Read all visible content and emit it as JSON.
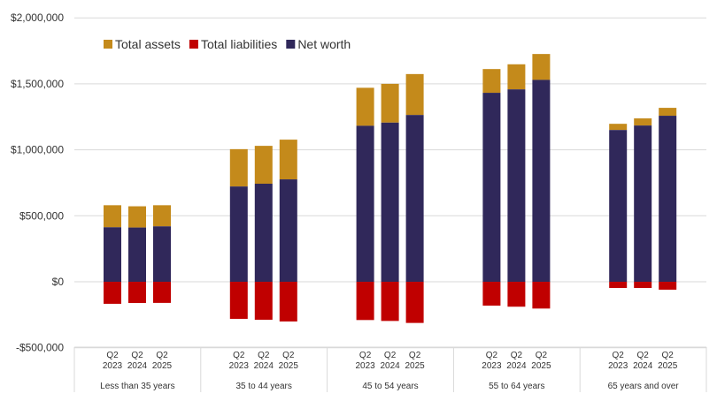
{
  "chart_data": {
    "type": "bar",
    "stacked": true,
    "title": "",
    "xlabel": "",
    "ylabel": "",
    "ylim": [
      -500000,
      2000000
    ],
    "yticks": [
      2000000,
      1500000,
      1000000,
      500000,
      0,
      -500000
    ],
    "ytick_labels": [
      "$2,000,000",
      "$1,500,000",
      "$1,000,000",
      "$500,000",
      "$0",
      "-$500,000"
    ],
    "grid": true,
    "legend_position": "top-left",
    "groups": [
      "Less than 35 years",
      "35 to 44 years",
      "45 to 54 years",
      "55 to 64 years",
      "65 years and over"
    ],
    "sub_categories": [
      [
        "Q2",
        "2023"
      ],
      [
        "Q2",
        "2024"
      ],
      [
        "Q2",
        "2025"
      ]
    ],
    "series": [
      {
        "name": "Total assets",
        "color": "#c48a1b",
        "values": [
          [
            580000,
            572000,
            580000
          ],
          [
            1005000,
            1030000,
            1077000
          ],
          [
            1470000,
            1500000,
            1574000
          ],
          [
            1612000,
            1648000,
            1726000
          ],
          [
            1197000,
            1238000,
            1318000
          ]
        ]
      },
      {
        "name": "Total liabilities",
        "color": "#c00000",
        "values": [
          [
            -167000,
            -161000,
            -160000
          ],
          [
            -281000,
            -288000,
            -301000
          ],
          [
            -290000,
            -297000,
            -312000
          ],
          [
            -181000,
            -189000,
            -203000
          ],
          [
            -47000,
            -47000,
            -60000
          ]
        ]
      },
      {
        "name": "Net worth",
        "color": "#30285a",
        "values": [
          [
            413000,
            411000,
            420000
          ],
          [
            722000,
            743000,
            776000
          ],
          [
            1182000,
            1206000,
            1264000
          ],
          [
            1432000,
            1458000,
            1530000
          ],
          [
            1150000,
            1184000,
            1258000
          ]
        ]
      }
    ]
  }
}
